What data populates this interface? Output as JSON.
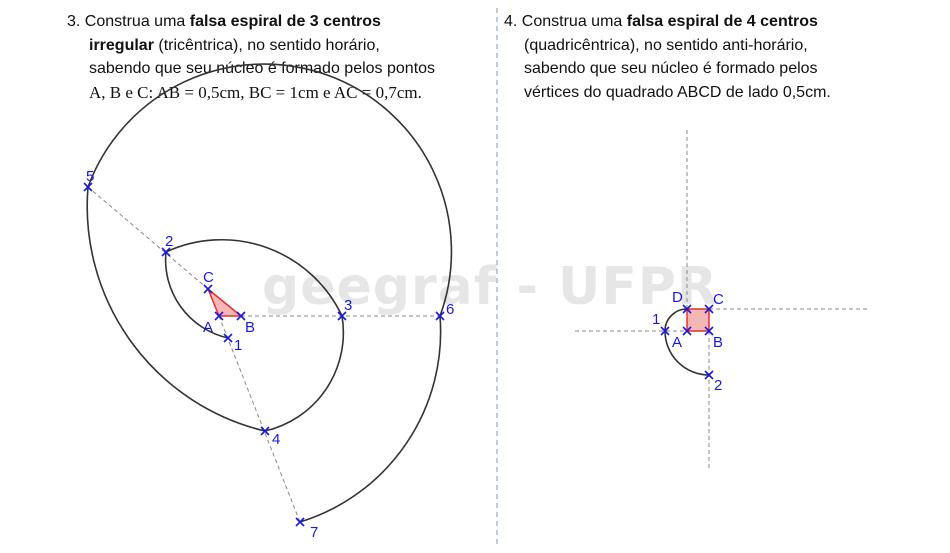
{
  "watermark": "geegraf - UFPR",
  "problem3": {
    "number": "3.",
    "t1": "Construa uma ",
    "b1": "falsa espiral de 3 centros",
    "b2": "irregular",
    "t2": " (tricêntrica), no sentido horário,",
    "t3": "sabendo que seu núcleo é formado pelos pontos",
    "t4": "A, B e C: AB = 0,5cm, BC = 1cm e AC = 0,7cm."
  },
  "problem4": {
    "number": "4.",
    "t1": "Construa uma ",
    "b1": "falsa espiral de 4 centros",
    "t2": "(quadricêntrica), no sentido anti-horário,",
    "t3": "sabendo que seu núcleo é formado pelos",
    "t4": "vértices do quadrado ABCD de lado 0,5cm."
  },
  "figure3": {
    "point_labels": {
      "A": "A",
      "B": "B",
      "C": "C",
      "p1": "1",
      "p2": "2",
      "p3": "3",
      "p4": "4",
      "p5": "5",
      "p6": "6",
      "p7": "7"
    }
  },
  "figure4": {
    "point_labels": {
      "A": "A",
      "B": "B",
      "C": "C",
      "D": "D",
      "p1": "1",
      "p2": "2"
    }
  },
  "colors": {
    "text": "#111111",
    "point_marker": "#1a1ad6",
    "nucleus": "#e03030",
    "nucleus_fill": "#f4b6b6",
    "curve": "#333333",
    "construction_line": "#888888",
    "watermark": "#e6e6e6"
  }
}
